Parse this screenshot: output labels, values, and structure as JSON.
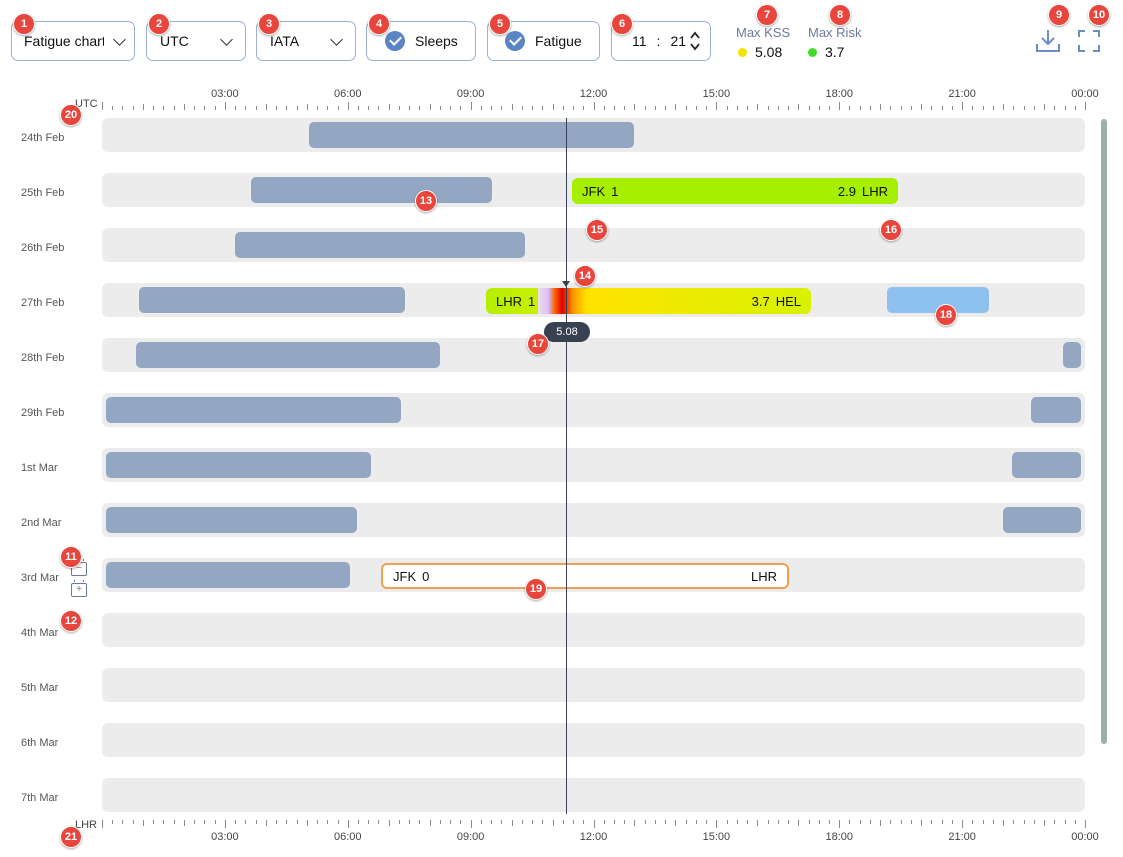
{
  "toolbar": {
    "view_select": "Fatigue chart",
    "timezone_select": "UTC",
    "airport_code_select": "IATA",
    "sleeps_toggle": "Sleeps",
    "fatigue_toggle": "Fatigue",
    "time_hours": "11",
    "time_sep": ":",
    "time_minutes": "21"
  },
  "metrics": {
    "max_kss": {
      "label": "Max KSS",
      "value": "5.08",
      "color": "#f5e200"
    },
    "max_risk": {
      "label": "Max Risk",
      "value": "3.7",
      "color": "#3ddc2b"
    }
  },
  "badges": [
    "1",
    "2",
    "3",
    "4",
    "5",
    "6",
    "7",
    "8",
    "9",
    "10",
    "11",
    "12",
    "13",
    "14",
    "15",
    "16",
    "17",
    "18",
    "19",
    "20",
    "21"
  ],
  "axis": {
    "top_label": "UTC",
    "bottom_label": "LHR",
    "ticks": [
      "03:00",
      "06:00",
      "09:00",
      "12:00",
      "15:00",
      "18:00",
      "21:00",
      "00:00"
    ]
  },
  "days": [
    "24th Feb",
    "25th Feb",
    "26th Feb",
    "27th Feb",
    "28th Feb",
    "29th Feb",
    "1st Mar",
    "2nd Mar",
    "3rd Mar",
    "4th Mar",
    "5th Mar",
    "6th Mar",
    "7th Mar"
  ],
  "flights": {
    "f1": {
      "from": "JFK",
      "from_val": "1",
      "to_val": "2.9",
      "to": "LHR"
    },
    "f2": {
      "from": "LHR",
      "from_val": "1",
      "to_val": "3.7",
      "to": "HEL"
    },
    "f3": {
      "from": "JFK",
      "from_val": "0",
      "to": "LHR"
    }
  },
  "cursor": {
    "value": "5.08"
  },
  "zoom": {
    "minus": "−",
    "plus": "+"
  },
  "colors": {
    "sleep": "#93a6c2",
    "row_bg": "#ececec",
    "accent": "#5b84c4",
    "badge": "#e8453c",
    "planned_flight_border": "#f0a050",
    "selected_sleep": "#8ec1ef"
  }
}
